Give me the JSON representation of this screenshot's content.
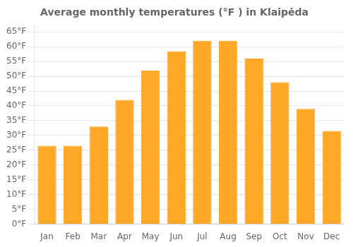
{
  "chart_data": {
    "type": "bar",
    "title": "Average monthly temperatures (°F ) in Klaipėda",
    "categories": [
      "Jan",
      "Feb",
      "Mar",
      "Apr",
      "May",
      "Jun",
      "Jul",
      "Aug",
      "Sep",
      "Oct",
      "Nov",
      "Dec"
    ],
    "values": [
      26.5,
      26.5,
      33,
      42,
      52,
      58.5,
      62,
      62,
      56,
      48,
      39,
      31.5
    ],
    "color": "#FFA726",
    "ylim": [
      0,
      67
    ],
    "yticks": [
      {
        "value": 0,
        "label": "0°F"
      },
      {
        "value": 5,
        "label": "5°F"
      },
      {
        "value": 10,
        "label": "10°F"
      },
      {
        "value": 15,
        "label": "15°F"
      },
      {
        "value": 20,
        "label": "20°F"
      },
      {
        "value": 25,
        "label": "25°F"
      },
      {
        "value": 30,
        "label": "30°F"
      },
      {
        "value": 35,
        "label": "35°F"
      },
      {
        "value": 40,
        "label": "40°F"
      },
      {
        "value": 45,
        "label": "45°F"
      },
      {
        "value": 50,
        "label": "50°F"
      },
      {
        "value": 55,
        "label": "55°F"
      },
      {
        "value": 60,
        "label": "60°F"
      },
      {
        "value": 65,
        "label": "65°F"
      }
    ],
    "grid": true
  }
}
